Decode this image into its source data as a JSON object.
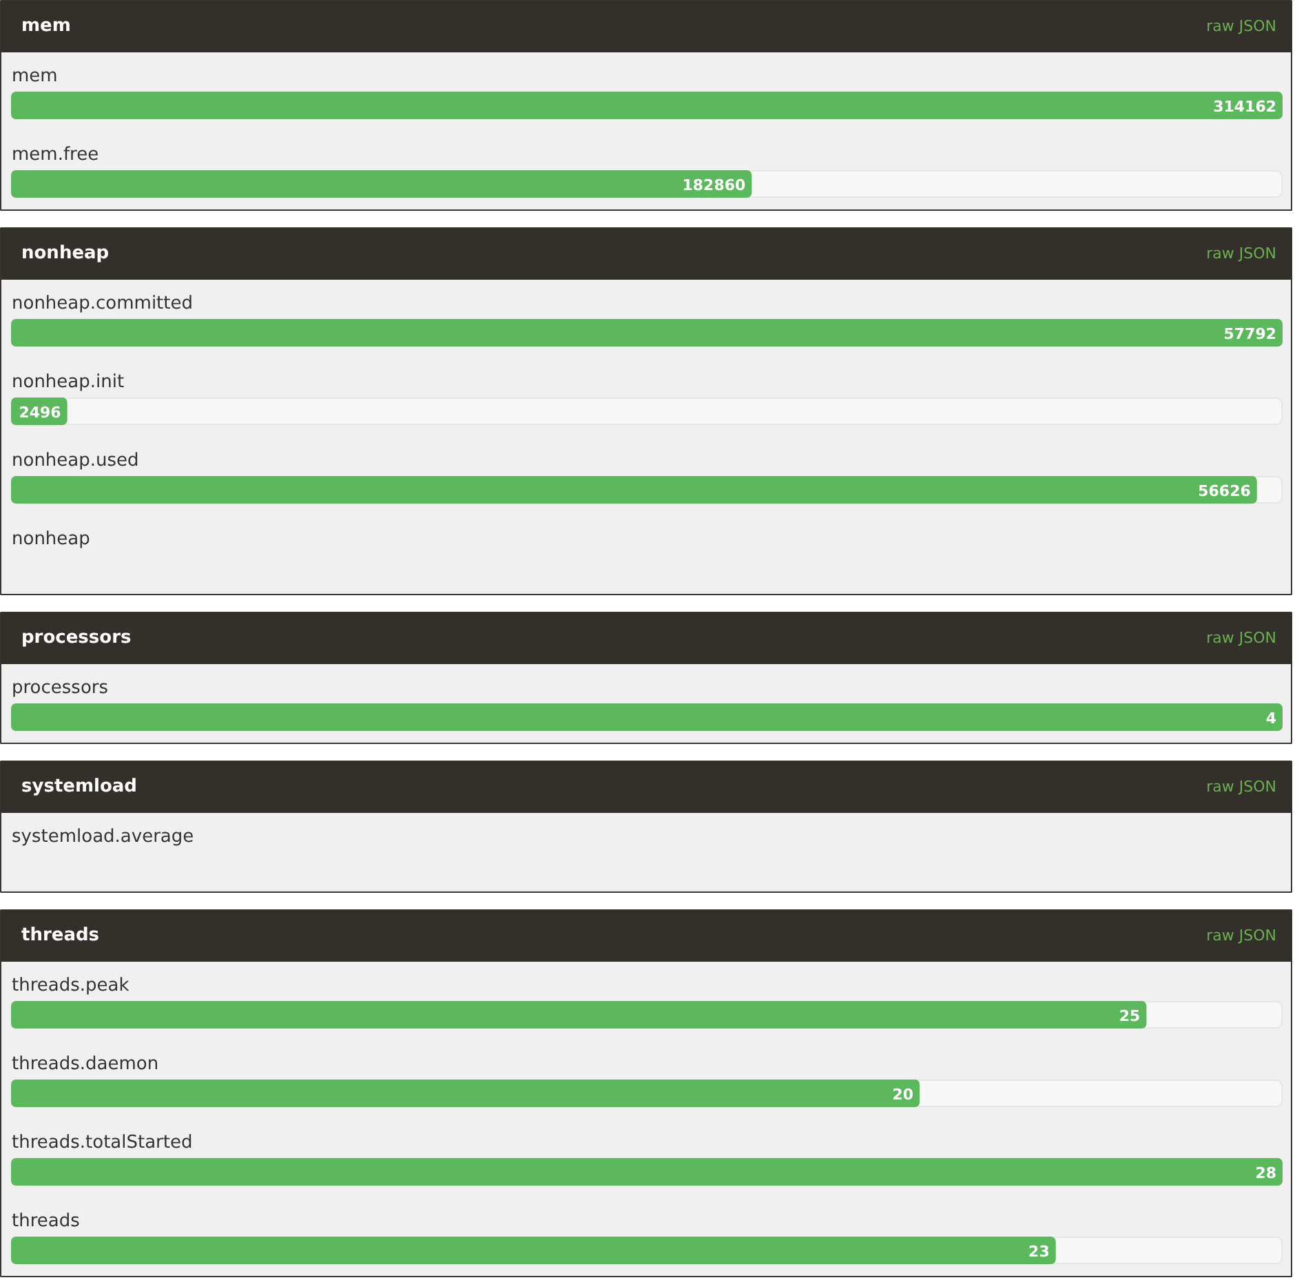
{
  "chart_data": [
    {
      "type": "bar",
      "orientation": "horizontal",
      "title": "mem",
      "annotations": [
        "raw JSON"
      ],
      "color": "#5cb85c",
      "categories": [
        "mem",
        "mem.free"
      ],
      "values": [
        314162,
        182860
      ],
      "data_labels": true
    },
    {
      "type": "bar",
      "orientation": "horizontal",
      "title": "nonheap",
      "annotations": [
        "raw JSON"
      ],
      "color": "#5cb85c",
      "categories": [
        "nonheap.committed",
        "nonheap.init",
        "nonheap.used",
        "nonheap"
      ],
      "values": [
        57792,
        2496,
        56626,
        null
      ],
      "value_labels": [
        "57792",
        "2496",
        "56626",
        null
      ]
    },
    {
      "type": "bar",
      "orientation": "horizontal",
      "title": "processors",
      "annotations": [
        "raw JSON"
      ],
      "color": "#5cb85c",
      "categories": [
        "processors"
      ],
      "values": [
        4
      ],
      "data_labels": true
    },
    {
      "type": "other",
      "title": "systemload",
      "annotations": [
        "raw JSON"
      ],
      "categories": [
        "systemload.average"
      ]
    },
    {
      "type": "bar",
      "orientation": "horizontal",
      "title": "threads",
      "annotations": [
        "raw JSON"
      ],
      "color": "#5cb85c",
      "categories": [
        "threads.peak",
        "threads.daemon",
        "threads.totalStarted",
        "threads"
      ],
      "values": [
        25,
        20,
        28,
        23
      ],
      "data_labels": true
    }
  ]
}
